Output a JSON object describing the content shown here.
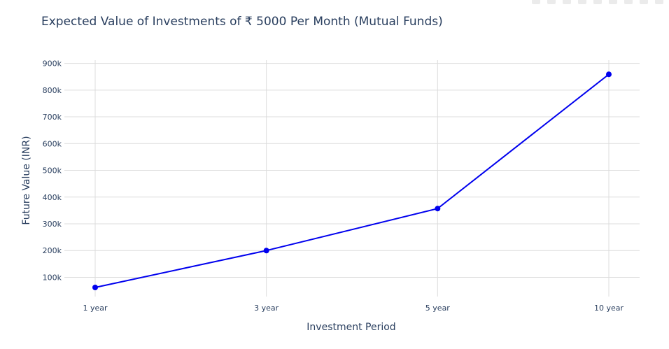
{
  "modebar": {
    "icons": [
      "camera-icon",
      "zoom-icon",
      "pan-icon",
      "box-select-icon",
      "lasso-icon",
      "zoom-in-icon",
      "zoom-out-icon",
      "autoscale-icon",
      "reset-axes-icon"
    ]
  },
  "chart_data": {
    "type": "line",
    "title": "Expected Value of Investments of ₹ 5000 Per Month (Mutual Funds)",
    "xlabel": "Investment Period",
    "ylabel": "Future Value (INR)",
    "categories": [
      "1 year",
      "3 year",
      "5 year",
      "10 year"
    ],
    "series": [
      {
        "values": [
          62000,
          200000,
          357000,
          859000
        ]
      }
    ],
    "ylim": [
      28000,
      912000
    ],
    "yticks": [
      100000,
      200000,
      300000,
      400000,
      500000,
      600000,
      700000,
      800000,
      900000
    ],
    "ytick_labels": [
      "100k",
      "200k",
      "300k",
      "400k",
      "500k",
      "600k",
      "700k",
      "800k",
      "900k"
    ],
    "grid": true,
    "line_color": "#0000ee",
    "grid_color": "#dcdcdc",
    "text_color": "#2a3f5f"
  }
}
